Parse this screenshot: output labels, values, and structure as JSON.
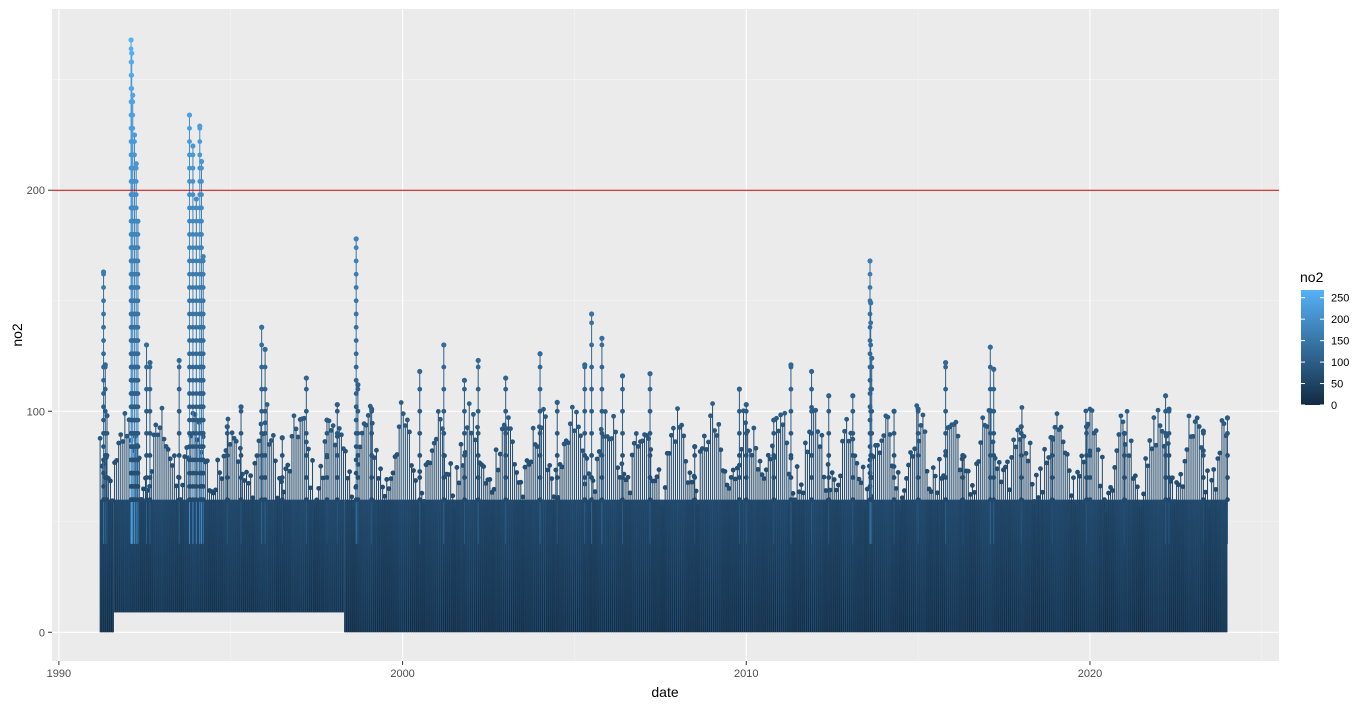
{
  "chart_data": {
    "type": "line",
    "title": "",
    "xlabel": "date",
    "ylabel": "no2",
    "xlim": [
      1989.8,
      2025.5
    ],
    "ylim": [
      -13,
      282
    ],
    "x_ticks": [
      1990,
      2000,
      2010,
      2020
    ],
    "x_tick_labels": [
      "1990",
      "2000",
      "2010",
      "2020"
    ],
    "y_ticks": [
      0,
      100,
      200
    ],
    "y_tick_labels": [
      "0",
      "100",
      "200"
    ],
    "grid": true,
    "reference_line": {
      "y": 200,
      "color": "#CC0000"
    },
    "data_range": {
      "x_start": 1991.2,
      "x_end": 2024.0
    },
    "baseline_segments": [
      {
        "x_start": 1991.2,
        "x_end": 1991.6,
        "y_min": 0
      },
      {
        "x_start": 1991.6,
        "x_end": 1998.3,
        "y_min": 9
      },
      {
        "x_start": 1998.3,
        "x_end": 2024.0,
        "y_min": 0
      }
    ],
    "peaks": [
      {
        "x": 1991.3,
        "y": 163
      },
      {
        "x": 1991.35,
        "y": 121
      },
      {
        "x": 1991.4,
        "y": 98
      },
      {
        "x": 1992.1,
        "y": 268
      },
      {
        "x": 1992.12,
        "y": 262
      },
      {
        "x": 1992.15,
        "y": 243
      },
      {
        "x": 1992.2,
        "y": 225
      },
      {
        "x": 1992.25,
        "y": 212
      },
      {
        "x": 1992.3,
        "y": 186
      },
      {
        "x": 1992.55,
        "y": 130
      },
      {
        "x": 1992.65,
        "y": 122
      },
      {
        "x": 1993.5,
        "y": 123
      },
      {
        "x": 1993.8,
        "y": 234
      },
      {
        "x": 1993.9,
        "y": 220
      },
      {
        "x": 1994.0,
        "y": 196
      },
      {
        "x": 1994.1,
        "y": 229
      },
      {
        "x": 1994.15,
        "y": 213
      },
      {
        "x": 1994.2,
        "y": 170
      },
      {
        "x": 1994.9,
        "y": 93
      },
      {
        "x": 1995.3,
        "y": 102
      },
      {
        "x": 1995.9,
        "y": 138
      },
      {
        "x": 1996.0,
        "y": 128
      },
      {
        "x": 1996.5,
        "y": 88
      },
      {
        "x": 1997.2,
        "y": 115
      },
      {
        "x": 1997.8,
        "y": 96
      },
      {
        "x": 1998.1,
        "y": 103
      },
      {
        "x": 1998.65,
        "y": 178
      },
      {
        "x": 1998.7,
        "y": 112
      },
      {
        "x": 1999.1,
        "y": 101
      },
      {
        "x": 2000.5,
        "y": 118
      },
      {
        "x": 2001.2,
        "y": 130
      },
      {
        "x": 2001.8,
        "y": 114
      },
      {
        "x": 2002.2,
        "y": 123
      },
      {
        "x": 2003.0,
        "y": 115
      },
      {
        "x": 2004.0,
        "y": 126
      },
      {
        "x": 2004.5,
        "y": 104
      },
      {
        "x": 2005.3,
        "y": 121
      },
      {
        "x": 2005.5,
        "y": 144
      },
      {
        "x": 2005.8,
        "y": 133
      },
      {
        "x": 2006.4,
        "y": 116
      },
      {
        "x": 2007.2,
        "y": 117
      },
      {
        "x": 2008.5,
        "y": 84
      },
      {
        "x": 2009.8,
        "y": 110
      },
      {
        "x": 2010.0,
        "y": 103
      },
      {
        "x": 2010.8,
        "y": 96
      },
      {
        "x": 2011.3,
        "y": 121
      },
      {
        "x": 2011.9,
        "y": 118
      },
      {
        "x": 2012.4,
        "y": 107
      },
      {
        "x": 2013.1,
        "y": 107
      },
      {
        "x": 2013.6,
        "y": 168
      },
      {
        "x": 2013.62,
        "y": 149
      },
      {
        "x": 2013.65,
        "y": 124
      },
      {
        "x": 2014.3,
        "y": 100
      },
      {
        "x": 2015.0,
        "y": 101
      },
      {
        "x": 2015.8,
        "y": 122
      },
      {
        "x": 2016.3,
        "y": 80
      },
      {
        "x": 2017.1,
        "y": 129
      },
      {
        "x": 2017.2,
        "y": 119
      },
      {
        "x": 2018.0,
        "y": 93
      },
      {
        "x": 2018.9,
        "y": 88
      },
      {
        "x": 2019.9,
        "y": 93
      },
      {
        "x": 2020.0,
        "y": 82
      },
      {
        "x": 2021.0,
        "y": 90
      },
      {
        "x": 2022.2,
        "y": 107
      },
      {
        "x": 2022.3,
        "y": 101
      },
      {
        "x": 2023.3,
        "y": 91
      },
      {
        "x": 2024.0,
        "y": 97
      }
    ],
    "color_scale": {
      "title": "no2",
      "low": "#132B43",
      "high": "#56B1F7",
      "limits": [
        0,
        268
      ],
      "breaks": [
        0,
        50,
        100,
        150,
        200,
        250
      ],
      "break_labels": [
        "0",
        "50",
        "100",
        "150",
        "200",
        "250"
      ]
    }
  }
}
